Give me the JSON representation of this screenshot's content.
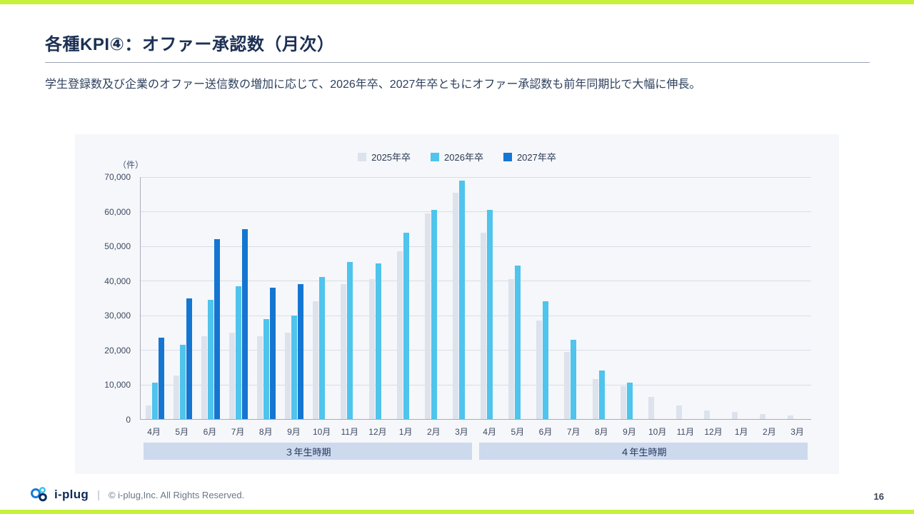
{
  "slide": {
    "title": "各種KPI④：オファー承認数（月次）",
    "subtitle": "学生登録数及び企業のオファー送信数の増加に応じて、2026年卒、2027年卒ともにオファー承認数も前年同期比で大幅に伸長。",
    "page_number": "16"
  },
  "footer": {
    "logo_text": "i-plug",
    "separator": "|",
    "copyright": "© i-plug,Inc. All Rights Reserved."
  },
  "colors": {
    "accent_bar": "#c7f13b",
    "panel_bg": "#f5f7fa",
    "band_bg": "#cdd9ed",
    "grid": "#d9dee6",
    "title_text": "#1c3054"
  },
  "chart_data": {
    "type": "bar",
    "unit_label": "（件）",
    "ylim": [
      0,
      70000
    ],
    "y_ticks": [
      0,
      10000,
      20000,
      30000,
      40000,
      50000,
      60000,
      70000
    ],
    "grid": true,
    "legend_position": "top-center",
    "categories": [
      "4月",
      "5月",
      "6月",
      "7月",
      "8月",
      "9月",
      "10月",
      "11月",
      "12月",
      "1月",
      "2月",
      "3月",
      "4月",
      "5月",
      "6月",
      "7月",
      "8月",
      "9月",
      "10月",
      "11月",
      "12月",
      "1月",
      "2月",
      "3月"
    ],
    "series": [
      {
        "name": "2025年卒",
        "color": "#dde3ed",
        "values": [
          4000,
          12500,
          24000,
          25000,
          24000,
          25000,
          34000,
          39000,
          40500,
          48500,
          59500,
          65500,
          54000,
          40500,
          28500,
          19500,
          11500,
          9500,
          6500,
          4000,
          2500,
          2000,
          1500,
          1000
        ]
      },
      {
        "name": "2026年卒",
        "color": "#4fc4ec",
        "values": [
          10500,
          21500,
          34500,
          38500,
          29000,
          30000,
          41000,
          45500,
          45000,
          54000,
          60500,
          69000,
          60500,
          44500,
          34000,
          23000,
          14000,
          10500,
          null,
          null,
          null,
          null,
          null,
          null
        ]
      },
      {
        "name": "2027年卒",
        "color": "#1576d2",
        "values": [
          23500,
          35000,
          52000,
          55000,
          38000,
          39000,
          null,
          null,
          null,
          null,
          null,
          null,
          null,
          null,
          null,
          null,
          null,
          null,
          null,
          null,
          null,
          null,
          null,
          null
        ]
      }
    ],
    "period_bands": [
      {
        "label": "３年生時期",
        "start": 0,
        "end": 11
      },
      {
        "label": "４年生時期",
        "start": 12,
        "end": 23
      }
    ]
  }
}
